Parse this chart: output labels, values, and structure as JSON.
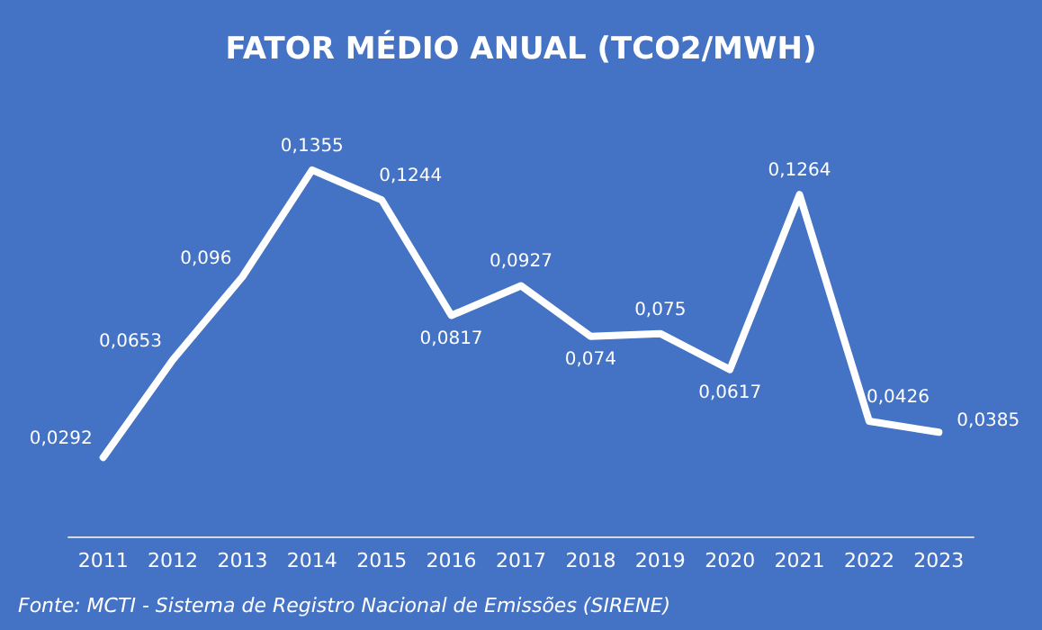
{
  "chart_data": {
    "type": "line",
    "title": "FATOR MÉDIO ANUAL (TCO2/MWH)",
    "categories": [
      "2011",
      "2012",
      "2013",
      "2014",
      "2015",
      "2016",
      "2017",
      "2018",
      "2019",
      "2020",
      "2021",
      "2022",
      "2023"
    ],
    "series": [
      {
        "color": "#ffffff",
        "values": [
          0.0292,
          0.0653,
          0.096,
          0.1355,
          0.1244,
          0.0817,
          0.0927,
          0.074,
          0.075,
          0.0617,
          0.1264,
          0.0426,
          0.0385
        ],
        "value_labels": [
          "0,0292",
          "0,0653",
          "0,096",
          "0,1355",
          "0,1244",
          "0,0817",
          "0,0927",
          "0,074",
          "0,075",
          "0,0617",
          "0,1264",
          "0,0426",
          "0,0385"
        ]
      }
    ],
    "annotations": [
      "Fonte: MCTI - Sistema de Registro Nacional de Emissões (SIRENE)"
    ],
    "marker": "none",
    "line_style": "solid",
    "grid": false,
    "tick_labels": "x"
  }
}
